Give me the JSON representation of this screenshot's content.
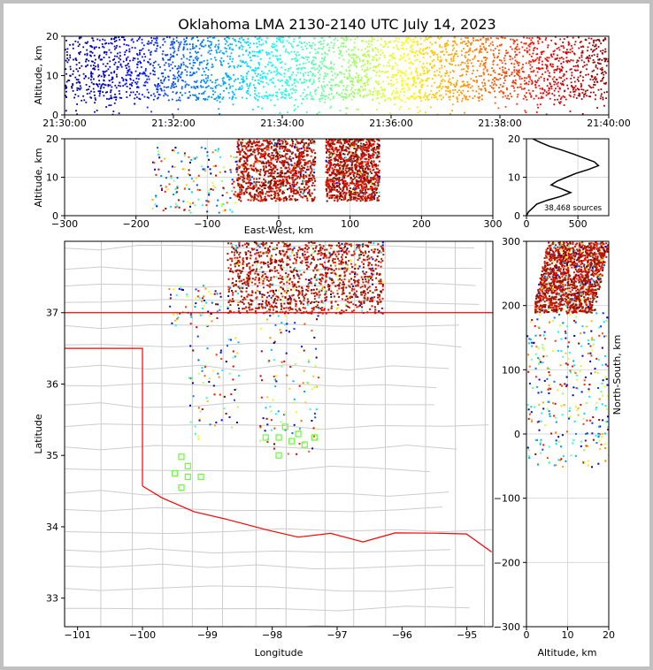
{
  "chart_data": {
    "title": "Oklahoma LMA 2130-2140 UTC July 14, 2023",
    "source_count_label": "38,468 sources",
    "state_border_color": "#ff0000",
    "county_line_color": "#cccccc",
    "marker_color_scheme": "jet (blue = early, red = late)",
    "grid": true,
    "panels": [
      {
        "id": "time-height",
        "type": "scatter",
        "xlabel": "",
        "ylabel": "Altitude, km",
        "x_ticks": [
          "21:30:00",
          "21:32:00",
          "21:34:00",
          "21:36:00",
          "21:38:00",
          "21:40:00"
        ],
        "xlim": [
          "21:30:00",
          "21:40:00"
        ],
        "y_ticks": [
          "0",
          "10",
          "20"
        ],
        "ylim": [
          0,
          20
        ],
        "altitude_band_km": [
          4,
          20
        ]
      },
      {
        "id": "ew-height",
        "type": "scatter",
        "xlabel": "East-West, km",
        "ylabel": "Altitude, km",
        "x_ticks": [
          "−300",
          "−200",
          "−100",
          "0",
          "100",
          "200",
          "300"
        ],
        "xlim": [
          -300,
          300
        ],
        "y_ticks": [
          "0",
          "10",
          "20"
        ],
        "ylim": [
          0,
          20
        ],
        "clusters_km": [
          [
            -60,
            50
          ],
          [
            65,
            140
          ]
        ]
      },
      {
        "id": "altitude-histogram",
        "type": "line",
        "xlabel": "",
        "ylabel": "",
        "x_ticks": [
          "0",
          "500"
        ],
        "xlim": [
          0,
          800
        ],
        "y_ticks": [
          "0",
          "10",
          "20"
        ],
        "ylim": [
          0,
          20
        ],
        "profile": [
          [
            0,
            0
          ],
          [
            20,
            1
          ],
          [
            60,
            2
          ],
          [
            100,
            3
          ],
          [
            200,
            4
          ],
          [
            330,
            5
          ],
          [
            430,
            6
          ],
          [
            340,
            7
          ],
          [
            240,
            8
          ],
          [
            300,
            9
          ],
          [
            390,
            10
          ],
          [
            480,
            11
          ],
          [
            600,
            12
          ],
          [
            700,
            13
          ],
          [
            660,
            14
          ],
          [
            560,
            15
          ],
          [
            460,
            16
          ],
          [
            350,
            17
          ],
          [
            230,
            18
          ],
          [
            140,
            19
          ],
          [
            60,
            20
          ]
        ]
      },
      {
        "id": "plan-view",
        "type": "scatter",
        "xlabel": "Longitude",
        "ylabel": "Latitude",
        "x_ticks": [
          "−101",
          "−100",
          "−99",
          "−98",
          "−97",
          "−96",
          "−95"
        ],
        "xlim": [
          -101.2,
          -94.6
        ],
        "y_ticks": [
          "33",
          "34",
          "35",
          "36",
          "37"
        ],
        "ylim": [
          32.6,
          38.0
        ]
      },
      {
        "id": "ns-height",
        "type": "scatter",
        "xlabel": "Altitude, km",
        "ylabel": "North-South, km",
        "x_ticks": [
          "0",
          "10",
          "20"
        ],
        "xlim": [
          0,
          20
        ],
        "y_ticks": [
          "300",
          "200",
          "100",
          "0",
          "−100",
          "−200",
          "−300"
        ],
        "ylim": [
          -300,
          300
        ]
      }
    ]
  }
}
